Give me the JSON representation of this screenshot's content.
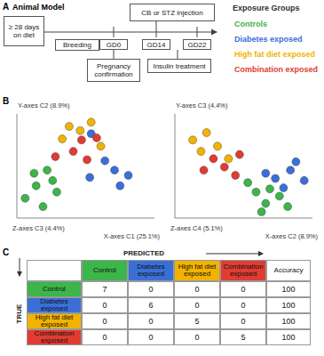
{
  "panel_a": {
    "label": "A",
    "title": "Animal Model",
    "diet": "≥ 28 days on diet",
    "stage": "Breeding",
    "timepoints": [
      "GD0",
      "GD14",
      "GD22"
    ],
    "injection": "CB or STZ injection",
    "confirmation": "Pregnancy confirmation",
    "treatment": "Insulin treatment"
  },
  "legend": {
    "title": "Exposure Groups",
    "groups": [
      {
        "name": "Controls",
        "color": "#3cb54a"
      },
      {
        "name": "Diabetes exposed",
        "color": "#3a6fd8"
      },
      {
        "name": "High fat diet exposed",
        "color": "#f2b200"
      },
      {
        "name": "Combination exposed",
        "color": "#e03c31"
      }
    ]
  },
  "panel_b_label": "B",
  "chart_data": [
    {
      "type": "scatter",
      "tick_labels": false,
      "x_label": "X-axes C1 (25.1%)",
      "y_label": "Y-axes C2 (8.9%)",
      "z_label": "Z-axes C3 (4.4%)",
      "xlim": [
        0,
        10
      ],
      "ylim": [
        0,
        10
      ],
      "series": [
        {
          "color": "#3cb54a",
          "x": [
            1.25,
            2.2,
            0.6,
            1.9,
            2.9,
            2.6,
            1.4
          ],
          "values": [
            4.3,
            4.6,
            1.9,
            1.1,
            2.5,
            3.6,
            3.1
          ]
        },
        {
          "color": "#3a6fd8",
          "x": [
            5.4,
            6.4,
            7.1,
            5.3,
            7.5,
            8.1
          ],
          "values": [
            8.1,
            5.5,
            4.6,
            3.9,
            3.1,
            4.1
          ]
        },
        {
          "color": "#f2b200",
          "x": [
            3.8,
            4.6,
            5.4,
            3.3,
            6.1
          ],
          "values": [
            8.8,
            8.4,
            9.2,
            7.6,
            6.9
          ]
        },
        {
          "color": "#e03c31",
          "x": [
            4.1,
            4.7,
            5.1,
            5.8,
            2.8
          ],
          "values": [
            6.4,
            7.5,
            5.6,
            7.7,
            5.9
          ]
        }
      ]
    },
    {
      "type": "scatter",
      "tick_labels": false,
      "x_label": "X-axes C2 (8.9%)",
      "y_label": "Y-axes C3 (4.4%)",
      "z_label": "Z-axes C4 (5.1%)",
      "xlim": [
        0,
        10
      ],
      "ylim": [
        0,
        10
      ],
      "series": [
        {
          "color": "#3cb54a",
          "x": [
            5.9,
            6.6,
            7.6,
            5.3,
            8.2,
            6.9,
            6.3
          ],
          "values": [
            2.5,
            1.4,
            2.1,
            3.4,
            1.1,
            2.8,
            0.6
          ]
        },
        {
          "color": "#3a6fd8",
          "x": [
            6.6,
            7.3,
            8.4,
            7.9,
            9.4,
            8.8
          ],
          "values": [
            4.3,
            3.8,
            4.6,
            2.9,
            3.6,
            5.4
          ]
        },
        {
          "color": "#f2b200",
          "x": [
            1.3,
            2.3,
            1.9,
            3.1,
            3.9
          ],
          "values": [
            7.5,
            8.2,
            6.4,
            6.9,
            5.7
          ]
        },
        {
          "color": "#e03c31",
          "x": [
            2.8,
            3.6,
            4.7,
            2.1,
            4.4
          ],
          "values": [
            5.7,
            4.9,
            6.1,
            4.6,
            4.1
          ]
        }
      ]
    }
  ],
  "panel_c": {
    "label": "C",
    "column_header": "PREDICTED",
    "row_header": "TRUE",
    "columns": [
      "Control",
      "Diabetes exposed",
      "High fat diet exposed",
      "Combination exposed",
      "Accuracy"
    ],
    "colors": [
      "#3cb54a",
      "#3a6fd8",
      "#f2b200",
      "#e03c31"
    ],
    "rows": [
      {
        "label": "Control",
        "cells": [
          7,
          0,
          0,
          0,
          100
        ]
      },
      {
        "label": "Diabetes exposed",
        "cells": [
          0,
          6,
          0,
          0,
          100
        ]
      },
      {
        "label": "High fat diet exposed",
        "cells": [
          0,
          0,
          5,
          0,
          100
        ]
      },
      {
        "label": "Combination exposed",
        "cells": [
          0,
          0,
          0,
          5,
          100
        ]
      }
    ]
  }
}
